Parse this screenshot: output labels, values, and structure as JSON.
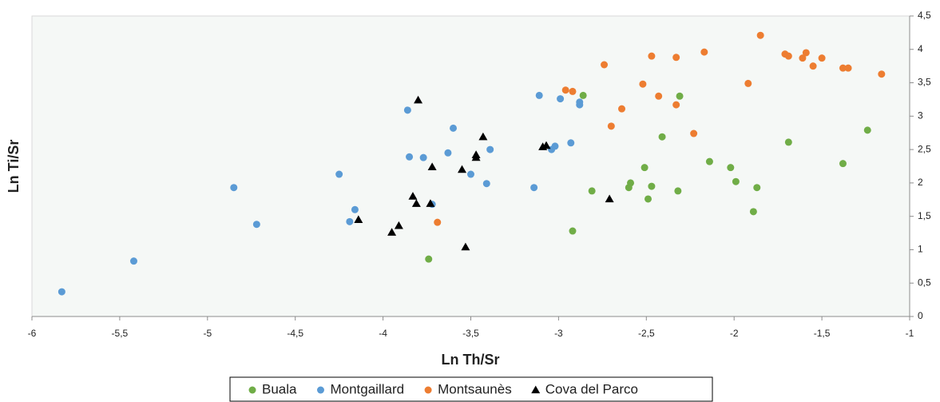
{
  "chart_data": {
    "type": "scatter",
    "xlabel": "Ln Th/Sr",
    "ylabel": "Ln Ti/Sr",
    "xlim": [
      -6,
      -1
    ],
    "ylim": [
      0,
      4.5
    ],
    "xticks": [
      -6,
      {
        "value": -5.5,
        "label": "-5,5"
      },
      -5,
      {
        "value": -4.5,
        "label": "-4,5"
      },
      -4,
      {
        "value": -3.5,
        "label": "-3,5"
      },
      -3,
      {
        "value": -2.5,
        "label": "-2,5"
      },
      -2,
      {
        "value": -1.5,
        "label": "-1,5"
      },
      -1
    ],
    "yticks": [
      0,
      {
        "value": 0.5,
        "label": "0,5"
      },
      1,
      {
        "value": 1.5,
        "label": "1,5"
      },
      2,
      {
        "value": 2.5,
        "label": "2,5"
      },
      3,
      {
        "value": 3.5,
        "label": "3,5"
      },
      4,
      {
        "value": 4.5,
        "label": "4,5"
      }
    ],
    "grid": false,
    "y_axis_side": "right",
    "legend": "bottom",
    "series": [
      {
        "name": "Buala",
        "color": "#70ad47",
        "marker": "circle",
        "x": [
          -3.74,
          -2.92,
          -2.86,
          -2.81,
          -2.6,
          -2.59,
          -2.51,
          -2.49,
          -2.47,
          -2.41,
          -2.31,
          -2.32,
          -2.14,
          -2.02,
          -1.99,
          -1.89,
          -1.87,
          -1.69,
          -1.38,
          -1.24
        ],
        "values": [
          0.86,
          1.28,
          3.31,
          1.88,
          1.93,
          2.0,
          2.23,
          1.76,
          1.95,
          2.69,
          3.3,
          1.88,
          2.32,
          2.23,
          2.02,
          1.57,
          1.93,
          2.61,
          2.29,
          2.79
        ]
      },
      {
        "name": "Montgaillard",
        "color": "#5b9bd5",
        "marker": "circle",
        "x": [
          -5.83,
          -5.42,
          -4.85,
          -4.72,
          -4.25,
          -4.16,
          -4.19,
          -3.86,
          -3.85,
          -3.77,
          -3.6,
          -3.63,
          -3.72,
          -3.5,
          -3.39,
          -3.41,
          -3.11,
          -3.14,
          -2.99,
          -3.02,
          -3.04,
          -2.88,
          -2.88,
          -2.93
        ],
        "values": [
          0.37,
          0.83,
          1.93,
          1.38,
          2.13,
          1.6,
          1.42,
          3.09,
          2.39,
          2.38,
          2.82,
          2.45,
          1.68,
          2.13,
          2.5,
          1.99,
          3.31,
          1.93,
          3.26,
          2.55,
          2.5,
          3.21,
          3.17,
          2.6
        ]
      },
      {
        "name": "Montsaunès",
        "color": "#ed7d31",
        "marker": "circle",
        "x": [
          -3.69,
          -2.96,
          -2.92,
          -2.74,
          -2.64,
          -2.7,
          -2.47,
          -2.52,
          -2.43,
          -2.33,
          -2.33,
          -2.17,
          -2.23,
          -1.85,
          -1.92,
          -1.71,
          -1.69,
          -1.61,
          -1.59,
          -1.55,
          -1.5,
          -1.38,
          -1.35,
          -1.16
        ],
        "values": [
          1.41,
          3.39,
          3.37,
          3.77,
          3.11,
          2.85,
          3.9,
          3.48,
          3.3,
          3.88,
          3.17,
          3.96,
          2.74,
          4.21,
          3.49,
          3.93,
          3.9,
          3.87,
          3.95,
          3.75,
          3.87,
          3.72,
          3.72,
          3.63
        ]
      },
      {
        "name": "Cova del Parco",
        "color": "#000000",
        "marker": "triangle",
        "x": [
          -4.14,
          -3.95,
          -3.91,
          -3.83,
          -3.81,
          -3.8,
          -3.73,
          -3.72,
          -3.55,
          -3.53,
          -3.47,
          -3.47,
          -3.43,
          -3.09,
          -3.07,
          -2.71
        ],
        "values": [
          1.45,
          1.26,
          1.36,
          1.8,
          1.69,
          3.24,
          1.69,
          2.24,
          2.2,
          1.04,
          2.42,
          2.38,
          2.69,
          2.54,
          2.56,
          1.76
        ]
      }
    ]
  }
}
